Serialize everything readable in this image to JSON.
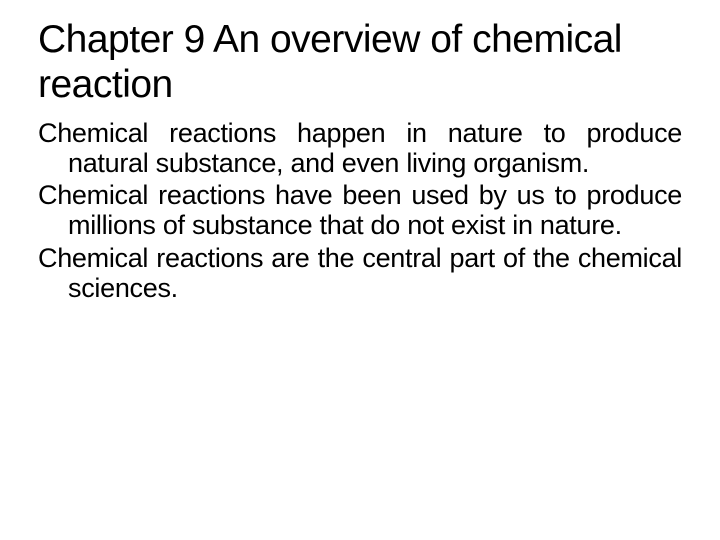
{
  "slide": {
    "title": "Chapter 9 An overview of chemical reaction",
    "paragraphs": [
      "Chemical reactions happen in nature to produce natural substance, and even living organism.",
      "Chemical reactions have been used by us to produce millions of substance that do not exist in nature.",
      "Chemical reactions are the central part of the chemical sciences."
    ]
  },
  "styling": {
    "background_color": "#ffffff",
    "title_color": "#000000",
    "body_color": "#000000",
    "title_fontsize": 39,
    "body_fontsize": 27,
    "font_family": "Arial"
  }
}
